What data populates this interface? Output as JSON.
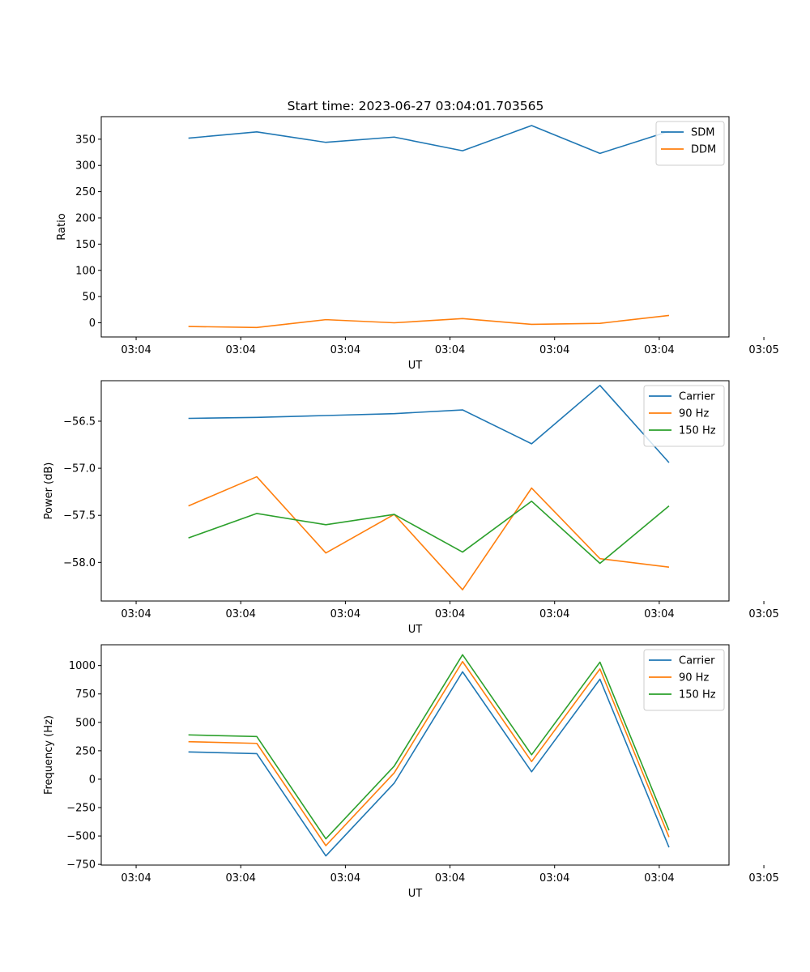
{
  "figure_title": "Start time: 2023-06-27 03:04:01.703565",
  "chart_data": [
    {
      "type": "line",
      "title": "Start time: 2023-06-27 03:04:01.703565",
      "xlabel": "UT",
      "ylabel": "Ratio",
      "xlim": [
        -0.5,
        8.5
      ],
      "ylim": [
        -27,
        393
      ],
      "x_ticks": [
        0,
        1.5,
        3,
        4.5,
        6,
        7.5,
        9
      ],
      "x_tick_labels": [
        "03:04",
        "03:04",
        "03:04",
        "03:04",
        "03:04",
        "03:04",
        "03:05"
      ],
      "y_ticks": [
        0,
        50,
        100,
        150,
        200,
        250,
        300,
        350
      ],
      "y_tick_labels": [
        "0",
        "50",
        "100",
        "150",
        "200",
        "250",
        "300",
        "350"
      ],
      "grid": false,
      "legend_position": "top-right",
      "x": [
        0.75,
        1.73,
        2.72,
        3.7,
        4.68,
        5.67,
        6.65,
        7.64
      ],
      "series": [
        {
          "name": "SDM",
          "color": "#1f77b4",
          "values": [
            352,
            364,
            344,
            354,
            328,
            376,
            323,
            365
          ]
        },
        {
          "name": "DDM",
          "color": "#ff7f0e",
          "values": [
            -7,
            -9,
            6,
            0,
            8,
            -3,
            -1,
            14
          ]
        }
      ]
    },
    {
      "type": "line",
      "title": "",
      "xlabel": "UT",
      "ylabel": "Power (dB)",
      "xlim": [
        -0.5,
        8.5
      ],
      "ylim": [
        -58.41,
        -56.07
      ],
      "x_ticks": [
        0,
        1.5,
        3,
        4.5,
        6,
        7.5,
        9
      ],
      "x_tick_labels": [
        "03:04",
        "03:04",
        "03:04",
        "03:04",
        "03:04",
        "03:04",
        "03:05"
      ],
      "y_ticks": [
        -58.0,
        -57.5,
        -57.0,
        -56.5
      ],
      "y_tick_labels": [
        "−58.0",
        "−57.5",
        "−57.0",
        "−56.5"
      ],
      "grid": false,
      "legend_position": "top-right",
      "x": [
        0.75,
        1.73,
        2.72,
        3.7,
        4.68,
        5.67,
        6.65,
        7.64
      ],
      "series": [
        {
          "name": "Carrier",
          "color": "#1f77b4",
          "values": [
            -56.47,
            -56.46,
            -56.44,
            -56.42,
            -56.38,
            -56.74,
            -56.12,
            -56.94
          ]
        },
        {
          "name": "90 Hz",
          "color": "#ff7f0e",
          "values": [
            -57.4,
            -57.09,
            -57.9,
            -57.49,
            -58.29,
            -57.21,
            -57.96,
            -58.05
          ]
        },
        {
          "name": "150 Hz",
          "color": "#2ca02c",
          "values": [
            -57.74,
            -57.48,
            -57.6,
            -57.49,
            -57.89,
            -57.35,
            -58.01,
            -57.4
          ]
        }
      ]
    },
    {
      "type": "line",
      "title": "",
      "xlabel": "UT",
      "ylabel": "Frequency (Hz)",
      "xlim": [
        -0.5,
        8.5
      ],
      "ylim": [
        -756,
        1183
      ],
      "x_ticks": [
        0,
        1.5,
        3,
        4.5,
        6,
        7.5,
        9
      ],
      "x_tick_labels": [
        "03:04",
        "03:04",
        "03:04",
        "03:04",
        "03:04",
        "03:04",
        "03:05"
      ],
      "y_ticks": [
        -750,
        -500,
        -250,
        0,
        250,
        500,
        750,
        1000
      ],
      "y_tick_labels": [
        "−750",
        "−500",
        "−250",
        "0",
        "250",
        "500",
        "750",
        "1000"
      ],
      "grid": false,
      "legend_position": "top-right",
      "x": [
        0.75,
        1.73,
        2.72,
        3.7,
        4.68,
        5.67,
        6.65,
        7.64
      ],
      "series": [
        {
          "name": "Carrier",
          "color": "#1f77b4",
          "values": [
            240,
            225,
            -675,
            -35,
            945,
            65,
            880,
            -600
          ]
        },
        {
          "name": "90 Hz",
          "color": "#ff7f0e",
          "values": [
            330,
            315,
            -585,
            55,
            1035,
            155,
            970,
            -510
          ]
        },
        {
          "name": "150 Hz",
          "color": "#2ca02c",
          "values": [
            390,
            375,
            -525,
            115,
            1095,
            215,
            1030,
            -450
          ]
        }
      ]
    }
  ]
}
